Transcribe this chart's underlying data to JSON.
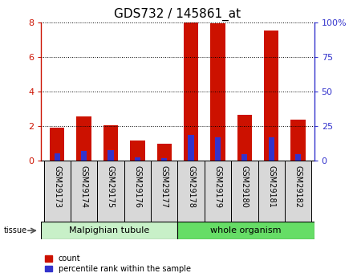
{
  "title": "GDS732 / 145861_at",
  "samples": [
    "GSM29173",
    "GSM29174",
    "GSM29175",
    "GSM29176",
    "GSM29177",
    "GSM29178",
    "GSM29179",
    "GSM29180",
    "GSM29181",
    "GSM29182"
  ],
  "count_values": [
    1.9,
    2.55,
    2.05,
    1.15,
    1.0,
    8.0,
    7.95,
    2.65,
    7.5,
    2.35
  ],
  "percentile_values": [
    5.0,
    7.0,
    7.5,
    2.5,
    2.0,
    18.5,
    17.0,
    4.5,
    17.0,
    4.5
  ],
  "tissue_labels": [
    "Malpighian tubule",
    "whole organism"
  ],
  "tissue_split": 5,
  "tissue_color_left": "#c8f0c8",
  "tissue_color_right": "#66dd66",
  "bar_color_red": "#cc1100",
  "bar_color_blue": "#3333cc",
  "tick_bg_color": "#d8d8d8",
  "plot_bg_color": "#ffffff",
  "ylim_left": [
    0,
    8
  ],
  "ylim_right": [
    0,
    100
  ],
  "yticks_left": [
    0,
    2,
    4,
    6,
    8
  ],
  "yticks_right": [
    0,
    25,
    50,
    75,
    100
  ],
  "title_fontsize": 11,
  "tick_label_fontsize": 7,
  "tissue_fontsize": 8,
  "legend_fontsize": 7
}
